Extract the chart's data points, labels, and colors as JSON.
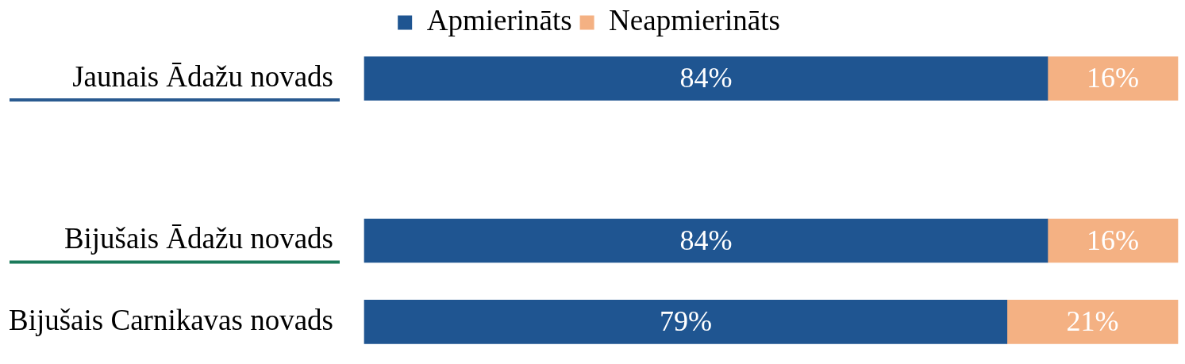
{
  "chart_data": {
    "type": "bar",
    "orientation": "horizontal",
    "stacked": true,
    "categories": [
      "Jaunais Ādažu novads",
      null,
      "Bijušais Ādažu novads",
      "Bijušais Carnikavas novads"
    ],
    "series": [
      {
        "name": "Apmierināts",
        "color": "#1f5591",
        "values": [
          84,
          null,
          84,
          79
        ],
        "value_labels": [
          "84%",
          null,
          "84%",
          "79%"
        ]
      },
      {
        "name": "Neapmierināts",
        "color": "#f4b183",
        "values": [
          16,
          null,
          16,
          21
        ],
        "value_labels": [
          "16%",
          null,
          "16%",
          "21%"
        ]
      }
    ],
    "xlim": [
      0,
      100
    ],
    "tick_labels": "y",
    "legend": "top"
  }
}
